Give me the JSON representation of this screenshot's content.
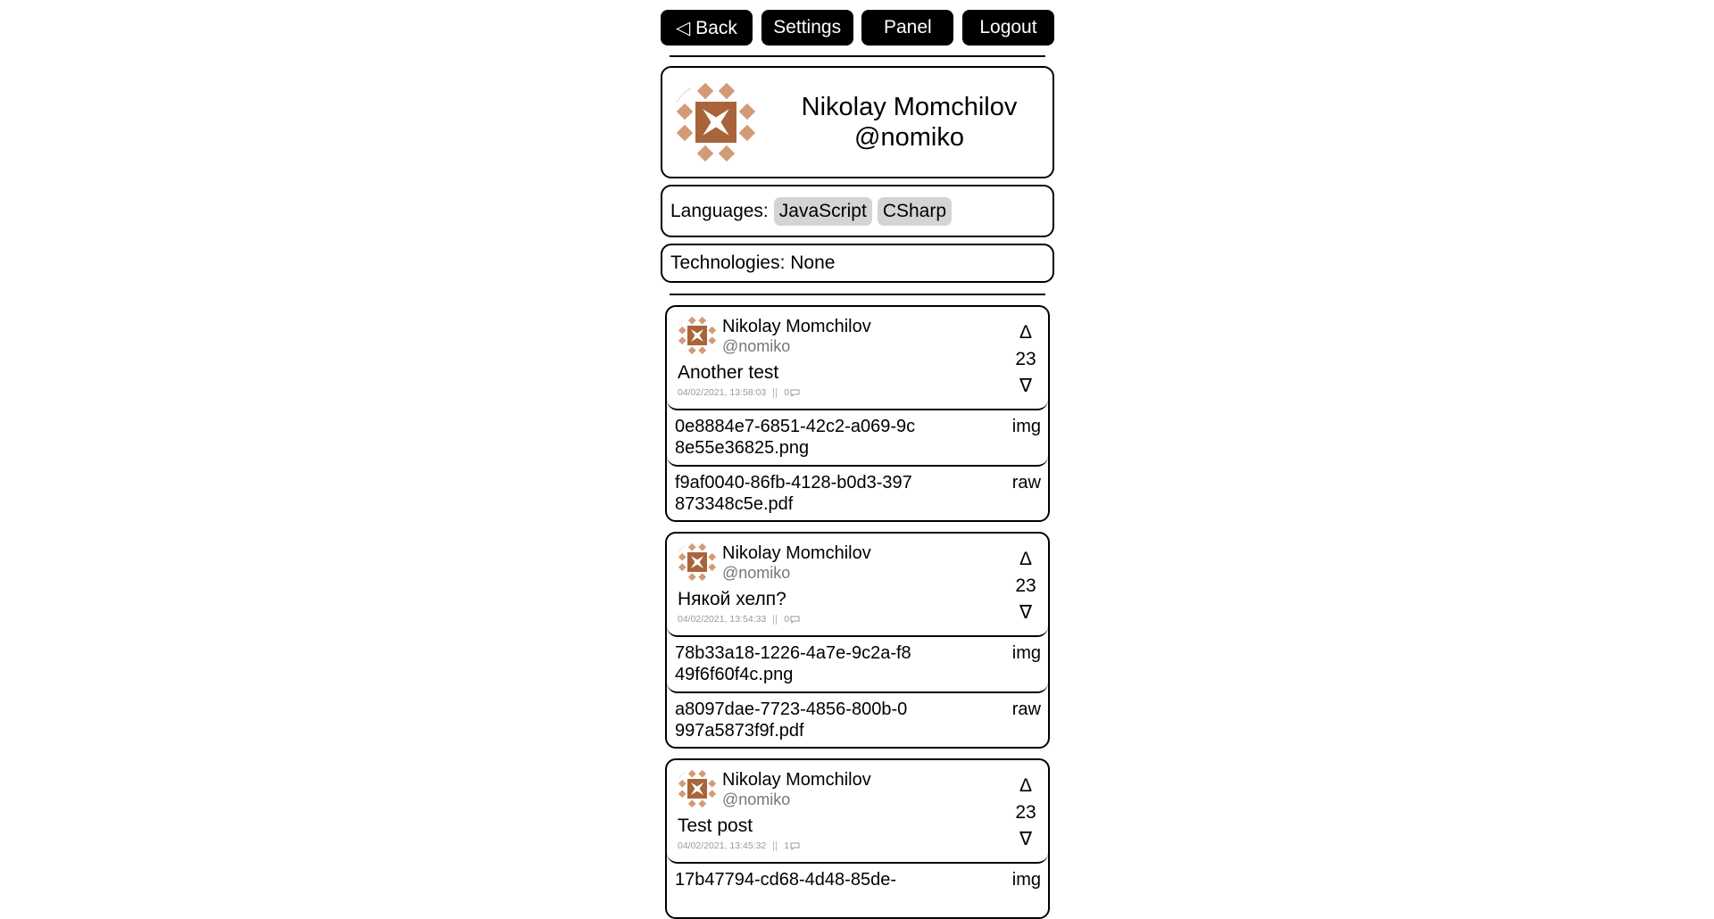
{
  "nav": {
    "back": "◁ Back",
    "settings": "Settings",
    "panel": "Panel",
    "logout": "Logout"
  },
  "profile": {
    "name": "Nikolay Momchilov",
    "handle": "@nomiko",
    "avatar_icon": "identicon",
    "avatar_color": "#a8643a"
  },
  "languages": {
    "label": "Languages:",
    "items": [
      "JavaScript",
      "CSharp"
    ]
  },
  "technologies": {
    "text": "Technologies: None"
  },
  "posts": [
    {
      "author": "Nikolay Momchilov",
      "handle": "@nomiko",
      "text": "Another test",
      "date": "04/02/2021, 13:58:03",
      "comments": "0",
      "votes": "23",
      "up": "Δ",
      "down": "∇",
      "attachments": [
        {
          "name": "0e8884e7-6851-42c2-a069-9c8e55e36825.png",
          "type": "img"
        },
        {
          "name": "f9af0040-86fb-4128-b0d3-397873348c5e.pdf",
          "type": "raw"
        }
      ]
    },
    {
      "author": "Nikolay Momchilov",
      "handle": "@nomiko",
      "text": "Някой хелп?",
      "date": "04/02/2021, 13:54:33",
      "comments": "0",
      "votes": "23",
      "up": "Δ",
      "down": "∇",
      "attachments": [
        {
          "name": "78b33a18-1226-4a7e-9c2a-f849f6f60f4c.png",
          "type": "img"
        },
        {
          "name": "a8097dae-7723-4856-800b-0997a5873f9f.pdf",
          "type": "raw"
        }
      ]
    },
    {
      "author": "Nikolay Momchilov",
      "handle": "@nomiko",
      "text": "Test post",
      "date": "04/02/2021, 13:45:32",
      "comments": "1",
      "votes": "23",
      "up": "Δ",
      "down": "∇",
      "attachments": [
        {
          "name": "17b47794-cd68-4d48-85de-",
          "type": "img"
        }
      ]
    }
  ]
}
